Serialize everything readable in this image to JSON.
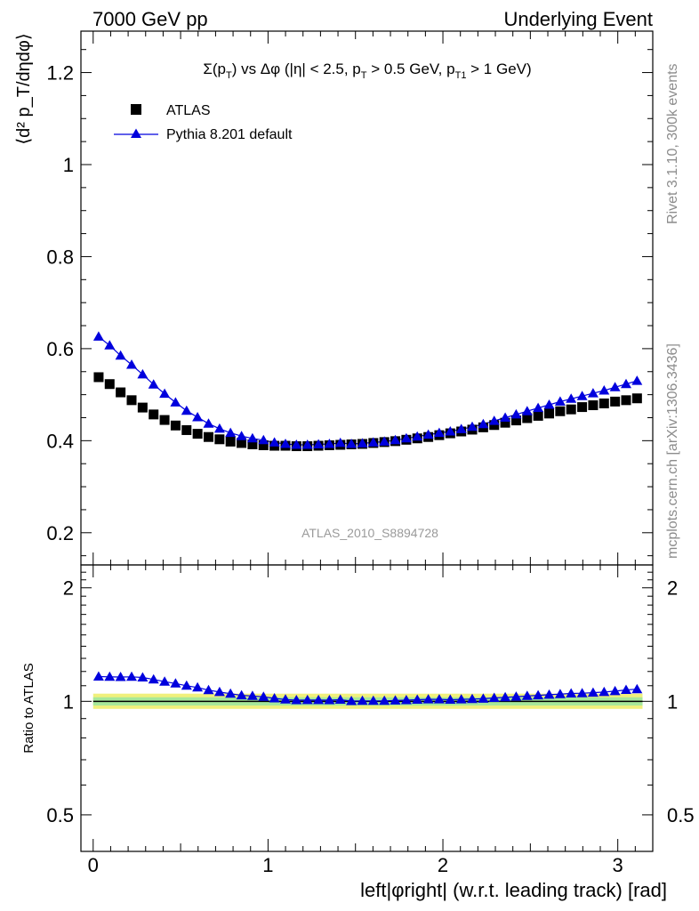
{
  "header": {
    "left": "7000 GeV pp",
    "right": "Underlying Event"
  },
  "side_text": {
    "rivet": "Rivet 3.1.10,  300k events",
    "mcplots": "mcplots.cern.ch [arXiv:1306.3436]"
  },
  "analysis_id": "ATLAS_2010_S8894728",
  "chart_data": [
    {
      "type": "scatter",
      "panel": "main",
      "title": {
        "sigma": "Σ(p",
        "sigma_sub": "T",
        "vs": ") vs Δφ (|η| < 2.5, p",
        "pt_sub": "T",
        "cut": " > 0.5 GeV, p",
        "pt1_sub": "T1",
        "cut2": " > 1 GeV)"
      },
      "ylabel": "⟨d² p_T/dηdφ⟩",
      "ylim": [
        0.13,
        1.29
      ],
      "yticks": [
        "0.2",
        "0.4",
        "0.6",
        "0.8",
        "1",
        "1.2"
      ],
      "xlim": [
        -0.07,
        3.2
      ],
      "legend_position": "top-left",
      "series": [
        {
          "name": "ATLAS",
          "marker": "square",
          "color": "#000000",
          "x": [
            0.0314,
            0.0942,
            0.157,
            0.2199,
            0.2827,
            0.3456,
            0.4084,
            0.4712,
            0.5341,
            0.5969,
            0.6597,
            0.7226,
            0.7854,
            0.8482,
            0.9111,
            0.9739,
            1.0367,
            1.0996,
            1.1624,
            1.2252,
            1.2881,
            1.3509,
            1.4137,
            1.4766,
            1.5394,
            1.6022,
            1.6651,
            1.7279,
            1.7907,
            1.8536,
            1.9164,
            1.9792,
            2.0421,
            2.1049,
            2.1677,
            2.2306,
            2.2934,
            2.3562,
            2.4191,
            2.4819,
            2.5447,
            2.6076,
            2.6704,
            2.7332,
            2.7961,
            2.8589,
            2.9217,
            2.9846,
            3.0474,
            3.1102
          ],
          "y": [
            0.538,
            0.523,
            0.505,
            0.488,
            0.472,
            0.457,
            0.445,
            0.433,
            0.423,
            0.415,
            0.408,
            0.403,
            0.398,
            0.395,
            0.392,
            0.39,
            0.389,
            0.389,
            0.388,
            0.388,
            0.389,
            0.39,
            0.391,
            0.392,
            0.393,
            0.395,
            0.397,
            0.399,
            0.402,
            0.405,
            0.408,
            0.412,
            0.416,
            0.42,
            0.424,
            0.429,
            0.434,
            0.439,
            0.444,
            0.449,
            0.454,
            0.459,
            0.464,
            0.468,
            0.473,
            0.477,
            0.481,
            0.485,
            0.488,
            0.492
          ]
        },
        {
          "name": "Pythia 8.201 default",
          "marker": "triangle",
          "color": "#0000dd",
          "x": [
            0.0314,
            0.0942,
            0.157,
            0.2199,
            0.2827,
            0.3456,
            0.4084,
            0.4712,
            0.5341,
            0.5969,
            0.6597,
            0.7226,
            0.7854,
            0.8482,
            0.9111,
            0.9739,
            1.0367,
            1.0996,
            1.1624,
            1.2252,
            1.2881,
            1.3509,
            1.4137,
            1.4766,
            1.5394,
            1.6022,
            1.6651,
            1.7279,
            1.7907,
            1.8536,
            1.9164,
            1.9792,
            2.0421,
            2.1049,
            2.1677,
            2.2306,
            2.2934,
            2.3562,
            2.4191,
            2.4819,
            2.5447,
            2.6076,
            2.6704,
            2.7332,
            2.7961,
            2.8589,
            2.9217,
            2.9846,
            3.0474,
            3.1102
          ],
          "y": [
            0.626,
            0.607,
            0.585,
            0.565,
            0.544,
            0.522,
            0.502,
            0.483,
            0.465,
            0.451,
            0.437,
            0.426,
            0.417,
            0.41,
            0.405,
            0.401,
            0.396,
            0.393,
            0.391,
            0.391,
            0.392,
            0.393,
            0.395,
            0.393,
            0.394,
            0.396,
            0.398,
            0.401,
            0.405,
            0.409,
            0.413,
            0.417,
            0.42,
            0.425,
            0.43,
            0.436,
            0.443,
            0.45,
            0.457,
            0.464,
            0.471,
            0.478,
            0.485,
            0.491,
            0.497,
            0.503,
            0.509,
            0.516,
            0.523,
            0.53
          ]
        }
      ]
    },
    {
      "type": "scatter",
      "panel": "ratio",
      "ylabel": "Ratio to ATLAS",
      "ylim": [
        0.4,
        2.3
      ],
      "yticks": [
        "0.5",
        "1",
        "2"
      ],
      "xlabel": "left|φright| (w.r.t. leading track) [rad]",
      "xticks": [
        "0",
        "1",
        "2",
        "3"
      ],
      "reference_line": 1,
      "error_bands": [
        {
          "color": "#f0f07c",
          "low": 0.955,
          "high": 1.048
        },
        {
          "color": "#a6e89a",
          "low": 0.975,
          "high": 1.025
        }
      ],
      "series": [
        {
          "name": "Pythia 8.201 default",
          "marker": "triangle",
          "color": "#0000dd",
          "y": [
            1.163,
            1.161,
            1.16,
            1.161,
            1.157,
            1.143,
            1.128,
            1.115,
            1.1,
            1.088,
            1.071,
            1.058,
            1.048,
            1.037,
            1.033,
            1.028,
            1.018,
            1.011,
            1.007,
            1.008,
            1.008,
            1.007,
            1.01,
            1.002,
            1.003,
            1.003,
            1.003,
            1.005,
            1.007,
            1.01,
            1.012,
            1.012,
            1.01,
            1.012,
            1.014,
            1.016,
            1.021,
            1.025,
            1.029,
            1.033,
            1.037,
            1.041,
            1.045,
            1.049,
            1.051,
            1.054,
            1.058,
            1.064,
            1.072,
            1.077
          ]
        }
      ]
    }
  ]
}
